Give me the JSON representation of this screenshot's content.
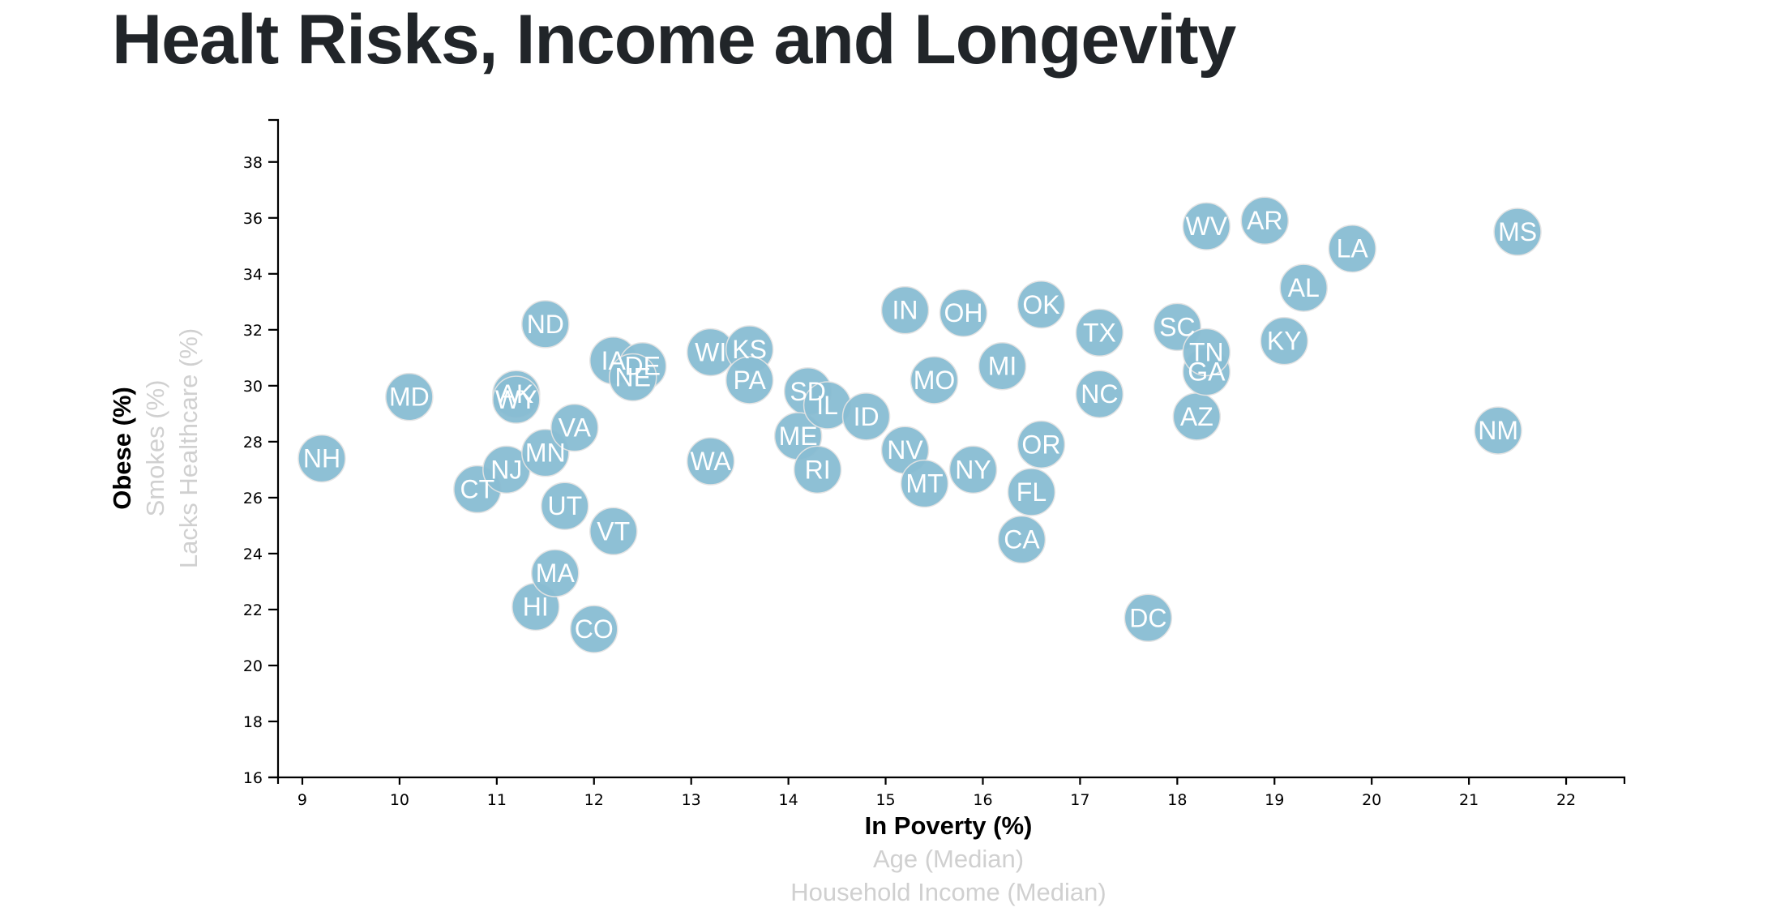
{
  "page": {
    "title": "Healt Risks, Income and Longevity"
  },
  "axis_labels": {
    "x": [
      {
        "text": "In Poverty (%)",
        "active": true
      },
      {
        "text": "Age (Median)",
        "active": false
      },
      {
        "text": "Household Income (Median)",
        "active": false
      }
    ],
    "y": [
      {
        "text": "Obese (%)",
        "active": true
      },
      {
        "text": "Smokes (%)",
        "active": false
      },
      {
        "text": "Lacks Healthcare (%)",
        "active": false
      }
    ]
  },
  "colors": {
    "point_fill": "#89bdd3",
    "point_stroke": "#e3e3e3",
    "point_label": "#ffffff",
    "inactive_label": "#d0d0d0"
  },
  "chart_data": {
    "type": "scatter",
    "title": "Healt Risks, Income and Longevity",
    "xlabel": "In Poverty (%)",
    "ylabel": "Obese (%)",
    "xlim": [
      8.75,
      22.6
    ],
    "ylim": [
      16,
      39.5
    ],
    "x_ticks": [
      9,
      10,
      11,
      12,
      13,
      14,
      15,
      16,
      17,
      18,
      19,
      20,
      21,
      22
    ],
    "y_ticks": [
      16,
      18,
      20,
      22,
      24,
      26,
      28,
      30,
      32,
      34,
      36,
      38
    ],
    "grid": false,
    "points": [
      {
        "label": "NH",
        "x": 9.2,
        "y": 27.4
      },
      {
        "label": "MD",
        "x": 10.1,
        "y": 29.6
      },
      {
        "label": "CT",
        "x": 10.8,
        "y": 26.3
      },
      {
        "label": "NJ",
        "x": 11.1,
        "y": 27.0
      },
      {
        "label": "AK",
        "x": 11.2,
        "y": 29.7
      },
      {
        "label": "WY",
        "x": 11.2,
        "y": 29.5
      },
      {
        "label": "HI",
        "x": 11.4,
        "y": 22.1
      },
      {
        "label": "MN",
        "x": 11.5,
        "y": 27.6
      },
      {
        "label": "ND",
        "x": 11.5,
        "y": 32.2
      },
      {
        "label": "MA",
        "x": 11.6,
        "y": 23.3
      },
      {
        "label": "UT",
        "x": 11.7,
        "y": 25.7
      },
      {
        "label": "VA",
        "x": 11.8,
        "y": 28.5
      },
      {
        "label": "CO",
        "x": 12.0,
        "y": 21.3
      },
      {
        "label": "IA",
        "x": 12.2,
        "y": 30.9
      },
      {
        "label": "VT",
        "x": 12.2,
        "y": 24.8
      },
      {
        "label": "DE",
        "x": 12.5,
        "y": 30.7
      },
      {
        "label": "NE",
        "x": 12.4,
        "y": 30.3
      },
      {
        "label": "WI",
        "x": 13.2,
        "y": 31.2
      },
      {
        "label": "WA",
        "x": 13.2,
        "y": 27.3
      },
      {
        "label": "KS",
        "x": 13.6,
        "y": 31.3
      },
      {
        "label": "PA",
        "x": 13.6,
        "y": 30.2
      },
      {
        "label": "SD",
        "x": 14.2,
        "y": 29.8
      },
      {
        "label": "ME",
        "x": 14.1,
        "y": 28.2
      },
      {
        "label": "IL",
        "x": 14.4,
        "y": 29.3
      },
      {
        "label": "RI",
        "x": 14.3,
        "y": 27.0
      },
      {
        "label": "ID",
        "x": 14.8,
        "y": 28.9
      },
      {
        "label": "IN",
        "x": 15.2,
        "y": 32.7
      },
      {
        "label": "NV",
        "x": 15.2,
        "y": 27.7
      },
      {
        "label": "MO",
        "x": 15.5,
        "y": 30.2
      },
      {
        "label": "MT",
        "x": 15.4,
        "y": 26.5
      },
      {
        "label": "OH",
        "x": 15.8,
        "y": 32.6
      },
      {
        "label": "NY",
        "x": 15.9,
        "y": 27.0
      },
      {
        "label": "MI",
        "x": 16.2,
        "y": 30.7
      },
      {
        "label": "CA",
        "x": 16.4,
        "y": 24.5
      },
      {
        "label": "FL",
        "x": 16.5,
        "y": 26.2
      },
      {
        "label": "OK",
        "x": 16.6,
        "y": 32.9
      },
      {
        "label": "OR",
        "x": 16.6,
        "y": 27.9
      },
      {
        "label": "TX",
        "x": 17.2,
        "y": 31.9
      },
      {
        "label": "NC",
        "x": 17.2,
        "y": 29.7
      },
      {
        "label": "DC",
        "x": 17.7,
        "y": 21.7
      },
      {
        "label": "SC",
        "x": 18.0,
        "y": 32.1
      },
      {
        "label": "AZ",
        "x": 18.2,
        "y": 28.9
      },
      {
        "label": "GA",
        "x": 18.3,
        "y": 30.5
      },
      {
        "label": "TN",
        "x": 18.3,
        "y": 31.2
      },
      {
        "label": "WV",
        "x": 18.3,
        "y": 35.7
      },
      {
        "label": "AR",
        "x": 18.9,
        "y": 35.9
      },
      {
        "label": "KY",
        "x": 19.1,
        "y": 31.6
      },
      {
        "label": "AL",
        "x": 19.3,
        "y": 33.5
      },
      {
        "label": "LA",
        "x": 19.8,
        "y": 34.9
      },
      {
        "label": "NM",
        "x": 21.3,
        "y": 28.4
      },
      {
        "label": "MS",
        "x": 21.5,
        "y": 35.5
      }
    ]
  }
}
